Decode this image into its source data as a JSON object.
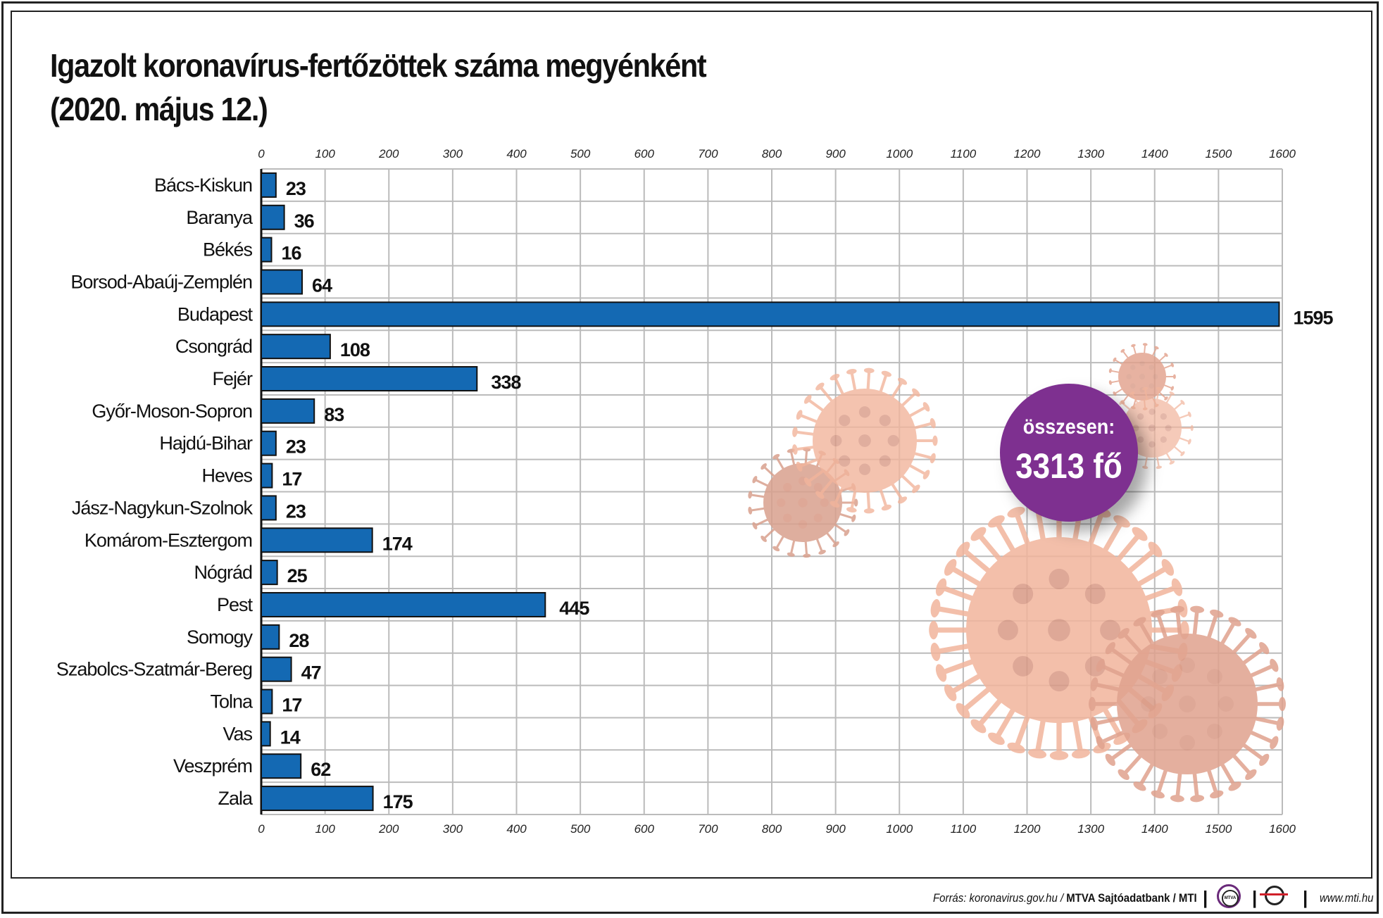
{
  "title": {
    "line1": "Igazolt koronavírus-fertőzöttek száma megyénként",
    "line2": "(2020. május 12.)"
  },
  "total": {
    "label": "összesen:",
    "value": "3313 fő",
    "color": "#7e3090"
  },
  "footer": {
    "source_prefix": "Forrás: koronavirus.gov.hu / ",
    "source_bold": "MTVA Sajtóadatbank / MTI",
    "logo1": "MTVA",
    "website": "www.mti.hu"
  },
  "colors": {
    "bar": "#1469b3",
    "virus": "#f2b59c",
    "grid": "#bbbbbb"
  },
  "chart_data": {
    "type": "bar",
    "orientation": "horizontal",
    "title": "Igazolt koronavírus-fertőzöttek száma megyénként (2020. május 12.)",
    "categories": [
      "Bács-Kiskun",
      "Baranya",
      "Békés",
      "Borsod-Abaúj-Zemplén",
      "Budapest",
      "Csongrád",
      "Fejér",
      "Győr-Moson-Sopron",
      "Hajdú-Bihar",
      "Heves",
      "Jász-Nagykun-Szolnok",
      "Komárom-Esztergom",
      "Nógrád",
      "Pest",
      "Somogy",
      "Szabolcs-Szatmár-Bereg",
      "Tolna",
      "Vas",
      "Veszprém",
      "Zala"
    ],
    "values": [
      23,
      36,
      16,
      64,
      1595,
      108,
      338,
      83,
      23,
      17,
      23,
      174,
      25,
      445,
      28,
      47,
      17,
      14,
      62,
      175
    ],
    "xlim": [
      0,
      1600
    ],
    "xticks": [
      0,
      100,
      200,
      300,
      400,
      500,
      600,
      700,
      800,
      900,
      1000,
      1100,
      1200,
      1300,
      1400,
      1500,
      1600
    ],
    "axis_labels_position": "top and bottom",
    "grid": true,
    "data_labels": true
  }
}
